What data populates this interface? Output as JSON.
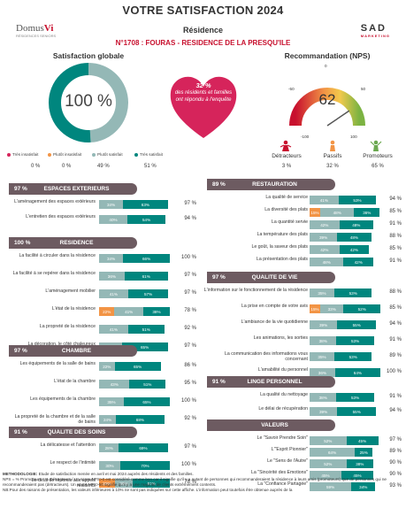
{
  "header": {
    "title": "VOTRE SATISFACTION 2024",
    "logo_left": "Domus",
    "logo_left_mark": "Vi",
    "logo_left_sub": "RÉSIDENCES SENIORS",
    "logo_right": "SAD",
    "logo_right_sub": "MARKETING",
    "residence": "Résidence",
    "subtitle": "N°1708 : FOURAS - RESIDENCE DE LA PRESQU'ILE"
  },
  "global": {
    "title": "Satisfaction globale",
    "value": "100 %",
    "donut": [
      {
        "name": "Très insatisfait",
        "value": 0,
        "color": "#d6245b"
      },
      {
        "name": "Plutôt insatisfait",
        "value": 0,
        "color": "#f29445"
      },
      {
        "name": "Plutôt satisfait",
        "value": 49,
        "color": "#94b8b6"
      },
      {
        "name": "Très satisfait",
        "value": 51,
        "color": "#00867e"
      }
    ],
    "pct_labels": [
      "0 %",
      "0 %",
      "49 %",
      "51 %"
    ]
  },
  "heart": {
    "pct": "32 %",
    "text": "des résidents et familles ont répondu à l'enquête"
  },
  "nps": {
    "title": "Recommandation (NPS)",
    "value": "62",
    "ticks": [
      "-100",
      "-50",
      "0",
      "50",
      "100"
    ],
    "categories": [
      {
        "label": "Détracteurs",
        "pct": "3 %",
        "color": "#c8102e"
      },
      {
        "label": "Passifs",
        "pct": "32 %",
        "color": "#f29445"
      },
      {
        "label": "Promoteurs",
        "pct": "65 %",
        "color": "#6aa84f"
      }
    ]
  },
  "left_sections": [
    {
      "pct": "97 %",
      "title": "ESPACES EXTERIEURS",
      "rows": [
        {
          "label": "L'aménagement des espaces extérieurs",
          "segs": [
            0,
            0,
            34,
            63
          ],
          "total": "97 %"
        },
        {
          "label": "L'entretien des espaces extérieurs",
          "segs": [
            0,
            0,
            40,
            54
          ],
          "total": "94 %"
        }
      ]
    },
    {
      "pct": "100 %",
      "title": "RESIDENCE",
      "rows": [
        {
          "label": "La facilité à circuler dans la résidence",
          "segs": [
            0,
            0,
            34,
            66
          ],
          "total": "100 %"
        },
        {
          "label": "La facilité à se repérer dans la résidence",
          "segs": [
            0,
            0,
            36,
            61
          ],
          "total": "97 %"
        },
        {
          "label": "L'aménagement mobilier",
          "segs": [
            0,
            0,
            41,
            57
          ],
          "total": "97 %"
        },
        {
          "label": "L'état de la résidence",
          "segs": [
            0,
            22,
            41,
            38
          ],
          "total": "78 %"
        },
        {
          "label": "La propreté de la résidence",
          "segs": [
            0,
            0,
            41,
            51
          ],
          "total": "92 %"
        },
        {
          "label": "La décoration, le côté chaleureux",
          "segs": [
            0,
            0,
            32,
            65
          ],
          "total": "97 %"
        }
      ]
    },
    {
      "pct": "97 %",
      "title": "CHAMBRE",
      "rows": [
        {
          "label": "Les équipements de la salle de bains",
          "segs": [
            0,
            0,
            22,
            65
          ],
          "total": "86 %"
        },
        {
          "label": "L'état de la chambre",
          "segs": [
            0,
            0,
            43,
            51
          ],
          "total": "95 %"
        },
        {
          "label": "Les équipements de la chambre",
          "segs": [
            0,
            0,
            35,
            65
          ],
          "total": "100 %"
        },
        {
          "label": "La propreté de la chambre et de la salle de bains",
          "segs": [
            0,
            0,
            24,
            68
          ],
          "total": "92 %"
        }
      ]
    },
    {
      "pct": "91 %",
      "title": "QUALITE DES SOINS",
      "rows": [
        {
          "label": "La délicatesse et l'attention",
          "segs": [
            0,
            0,
            28,
            69
          ],
          "total": "97 %"
        },
        {
          "label": "Le respect de l'intimité",
          "segs": [
            0,
            0,
            30,
            70
          ],
          "total": "100 %"
        },
        {
          "label": "Le délai de réponse aux appels résidents",
          "segs": [
            0,
            22,
            26,
            52
          ],
          "total": "78 %"
        }
      ]
    }
  ],
  "right_sections": [
    {
      "pct": "89 %",
      "title": "RESTAURATION",
      "rows": [
        {
          "label": "La qualité de service",
          "segs": [
            0,
            0,
            41,
            53
          ],
          "total": "94 %"
        },
        {
          "label": "La diversité des plats",
          "segs": [
            0,
            15,
            48,
            36
          ],
          "total": "85 %"
        },
        {
          "label": "La quantité servie",
          "segs": [
            0,
            0,
            42,
            48
          ],
          "total": "91 %"
        },
        {
          "label": "La température des plats",
          "segs": [
            0,
            0,
            39,
            48
          ],
          "total": "88 %"
        },
        {
          "label": "Le goût, la saveur des plats",
          "segs": [
            0,
            0,
            42,
            42
          ],
          "total": "85 %"
        },
        {
          "label": "La présentation des plats",
          "segs": [
            0,
            0,
            48,
            42
          ],
          "total": "91 %"
        }
      ]
    },
    {
      "pct": "97 %",
      "title": "QUALITE DE VIE",
      "rows": [
        {
          "label": "L'information sur le fonctionnement de la résidence",
          "segs": [
            0,
            0,
            35,
            53
          ],
          "total": "88 %"
        },
        {
          "label": "La prise en compte de votre avis",
          "segs": [
            0,
            15,
            33,
            52
          ],
          "total": "85 %"
        },
        {
          "label": "L'ambiance de la vie quotidienne",
          "segs": [
            0,
            0,
            39,
            55
          ],
          "total": "94 %"
        },
        {
          "label": "Les animations, les sorties",
          "segs": [
            0,
            0,
            38,
            53
          ],
          "total": "91 %"
        },
        {
          "label": "La communication des informations vous concernant",
          "segs": [
            0,
            0,
            35,
            53
          ],
          "total": "89 %"
        },
        {
          "label": "L'amabilité du personnel",
          "segs": [
            0,
            0,
            36,
            64
          ],
          "total": "100 %"
        }
      ]
    },
    {
      "pct": "91 %",
      "title": "LINGE PERSONNEL",
      "rows": [
        {
          "label": "La qualité du nettoyage",
          "segs": [
            0,
            0,
            38,
            53
          ],
          "total": "91 %"
        },
        {
          "label": "Le délai de récupération",
          "segs": [
            0,
            0,
            39,
            55
          ],
          "total": "94 %"
        }
      ]
    },
    {
      "pct": "",
      "title": "VALEURS",
      "rows": [
        {
          "label": "Le \"Savoir Prendre Soin\"",
          "segs": [
            0,
            0,
            52,
            45
          ],
          "total": "97 %"
        },
        {
          "label": "L'\"Esprit Pionnier\"",
          "segs": [
            0,
            0,
            64,
            25
          ],
          "total": "89 %"
        },
        {
          "label": "Le \"Sens de l'Autre\"",
          "segs": [
            0,
            0,
            52,
            38
          ],
          "total": "90 %"
        },
        {
          "label": "La \"Sincérité des Emotions\"",
          "segs": [
            0,
            0,
            45,
            45
          ],
          "total": "90 %"
        },
        {
          "label": "La \"Confiance Partagée\"",
          "segs": [
            0,
            0,
            59,
            34
          ],
          "total": "93 %"
        }
      ]
    }
  ],
  "methodology": {
    "line1_bold": "METHODOLOGIE:",
    "line1": " Etude de satisfaction menée en avril et mai 2024 auprès des résidents et des familles.",
    "line2": "NPS = % Promoteurs - % Détracteurs / Un score NPS>0 est considéré comme bon car il signifie qu'il y a autant de personnes qui recommanderaient la résidence à leurs amis (promoteurs) que de personnes qui ne recommanderaient pas (détracteurs). Un score NPS>50 signifie qu'il y a une majorité de clients extrêmement contents.",
    "line3": "NB:Pour des raisons de présentation, les valeurs inférieures à 10% ne sont pas indiquées sur cette affiche. L'information peut toutefois être obtenue auprès de la"
  }
}
